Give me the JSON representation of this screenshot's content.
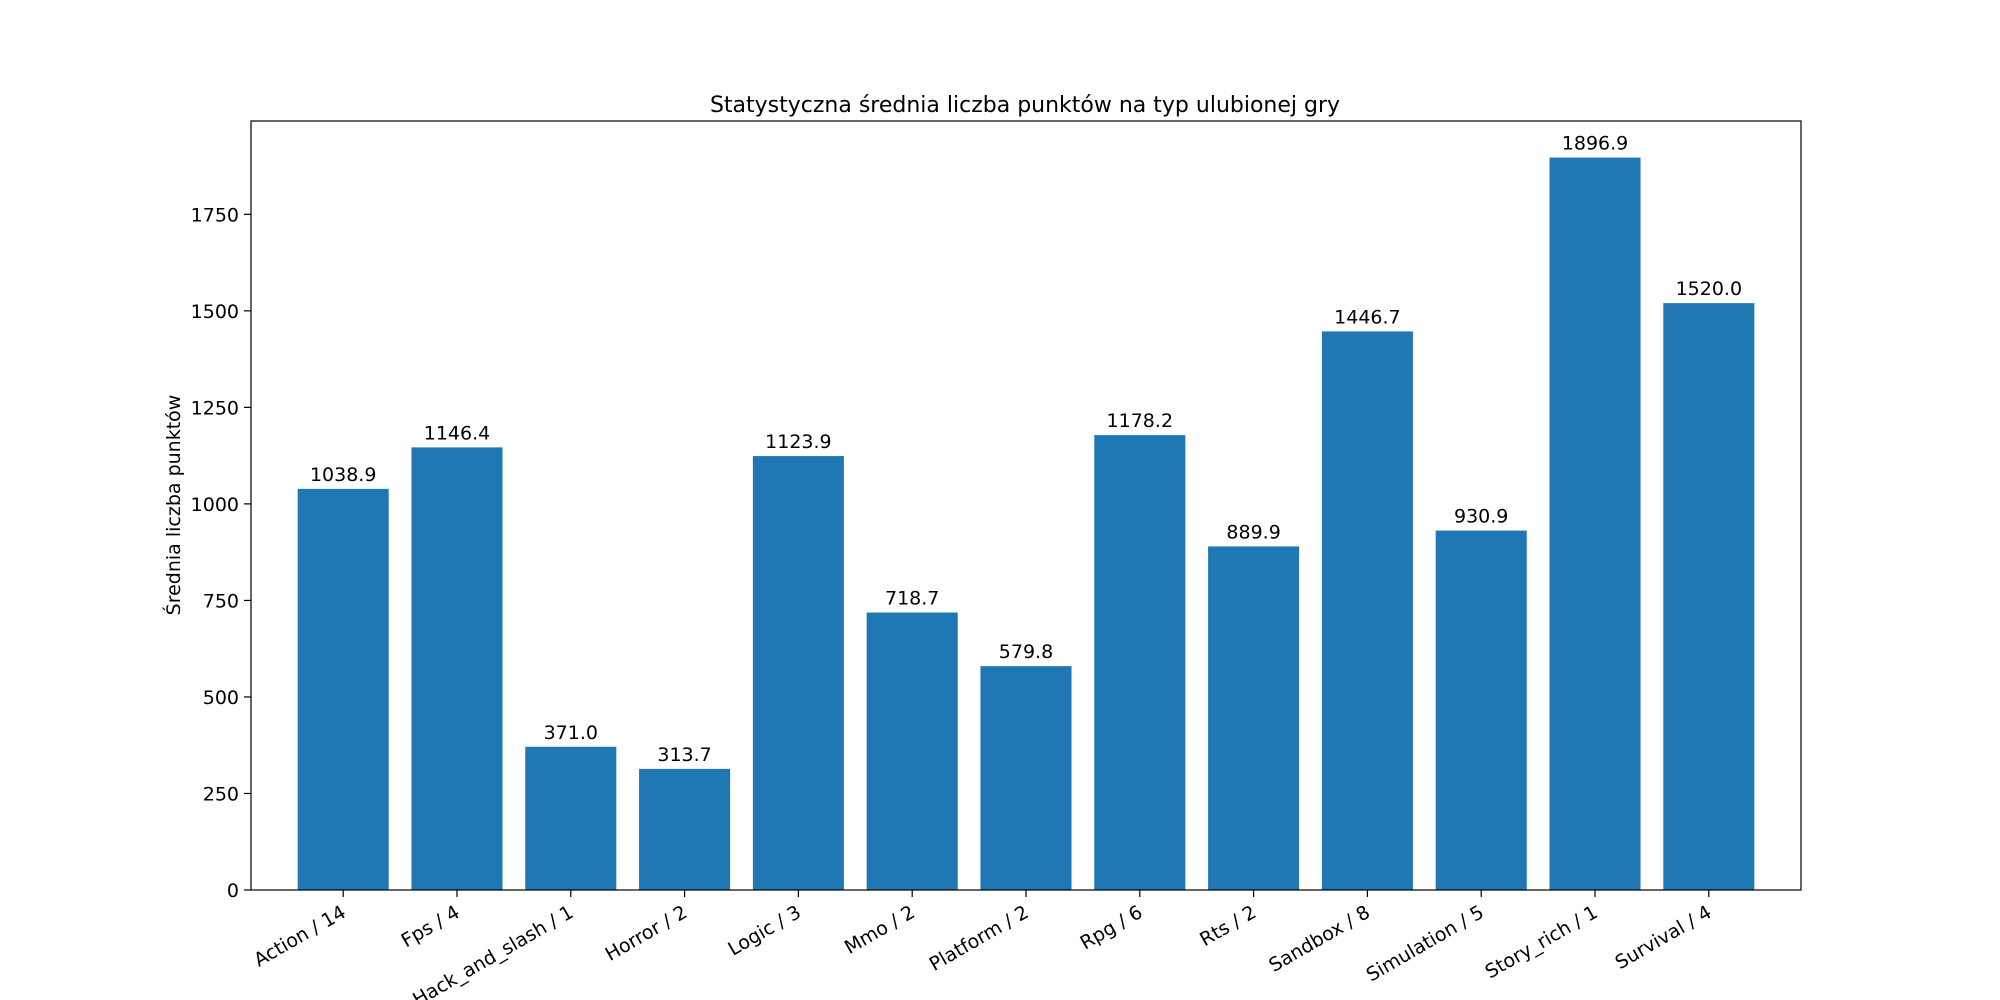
{
  "chart_data": {
    "type": "bar",
    "title": "Statystyczna średnia liczba punktów na typ ulubionej gry",
    "xlabel": "",
    "ylabel": "Średnia liczba punktów",
    "categories": [
      "Action / 14",
      "Fps / 4",
      "Hack_and_slash / 1",
      "Horror / 2",
      "Logic / 3",
      "Mmo / 2",
      "Platform / 2",
      "Rpg / 6",
      "Rts / 2",
      "Sandbox / 8",
      "Simulation / 5",
      "Story_rich / 1",
      "Survival / 4"
    ],
    "values": [
      1038.9,
      1146.4,
      371.0,
      313.7,
      1123.9,
      718.7,
      579.8,
      1178.2,
      889.9,
      1446.7,
      930.9,
      1896.9,
      1520.0
    ],
    "value_labels": [
      "1038.9",
      "1146.4",
      "371.0",
      "313.7",
      "1123.9",
      "718.7",
      "579.8",
      "1178.2",
      "889.9",
      "1446.7",
      "930.9",
      "1896.9",
      "1520.0"
    ],
    "ylim": [
      0,
      1991.7
    ],
    "yticks": [
      0,
      250,
      500,
      750,
      1000,
      1250,
      1500,
      1750
    ],
    "ytick_labels": [
      "0",
      "250",
      "500",
      "750",
      "1000",
      "1250",
      "1500",
      "1750"
    ],
    "grid": false,
    "legend": "none",
    "bar_color": "#1f77b4"
  }
}
